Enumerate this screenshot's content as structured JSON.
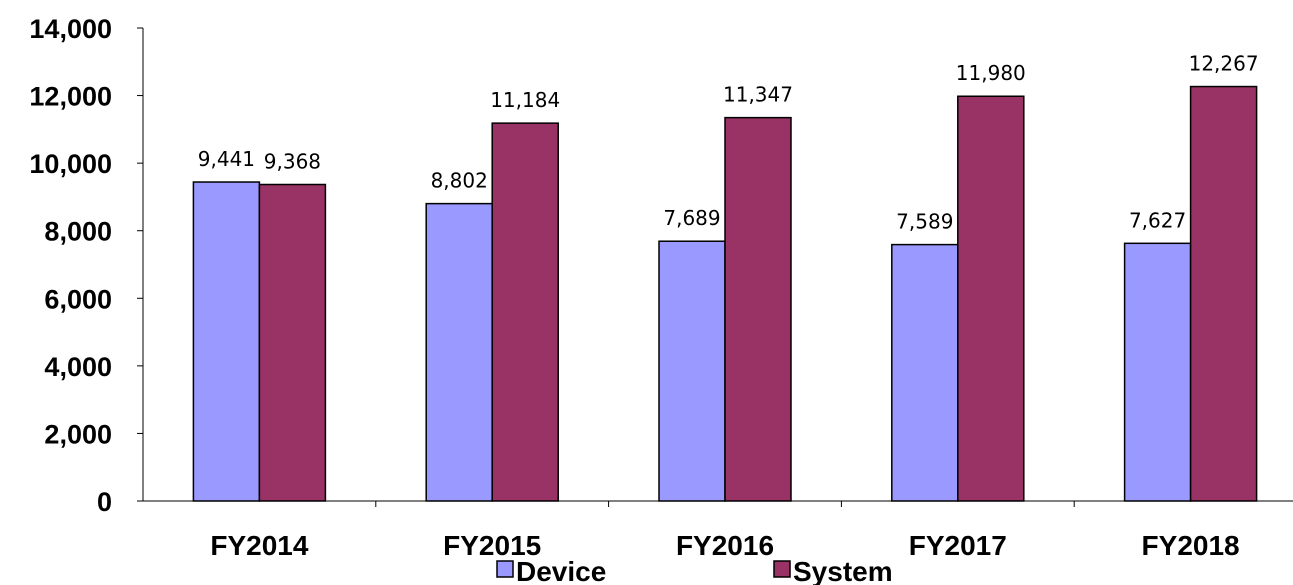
{
  "chart_data": {
    "type": "bar",
    "title": "",
    "xlabel": "",
    "ylabel": "",
    "categories": [
      "FY2014",
      "FY2015",
      "FY2016",
      "FY2017",
      "FY2018"
    ],
    "series": [
      {
        "name": "Device",
        "color": "#9999ff",
        "values": [
          9441,
          8802,
          7689,
          7589,
          7627
        ]
      },
      {
        "name": "System",
        "color": "#993366",
        "values": [
          9368,
          11184,
          11347,
          11980,
          12267
        ]
      }
    ],
    "data_labels": {
      "Device": [
        "9,441",
        "8,802",
        "7,689",
        "7,589",
        "7,627"
      ],
      "System": [
        "9,368",
        "11,184",
        "11,347",
        "11,980",
        "12,267"
      ]
    },
    "yticks": [
      "0",
      "2,000",
      "4,000",
      "6,000",
      "8,000",
      "10,000",
      "12,000",
      "14,000"
    ],
    "ylim": [
      0,
      14000
    ],
    "grid": false,
    "legend": "bottom"
  }
}
